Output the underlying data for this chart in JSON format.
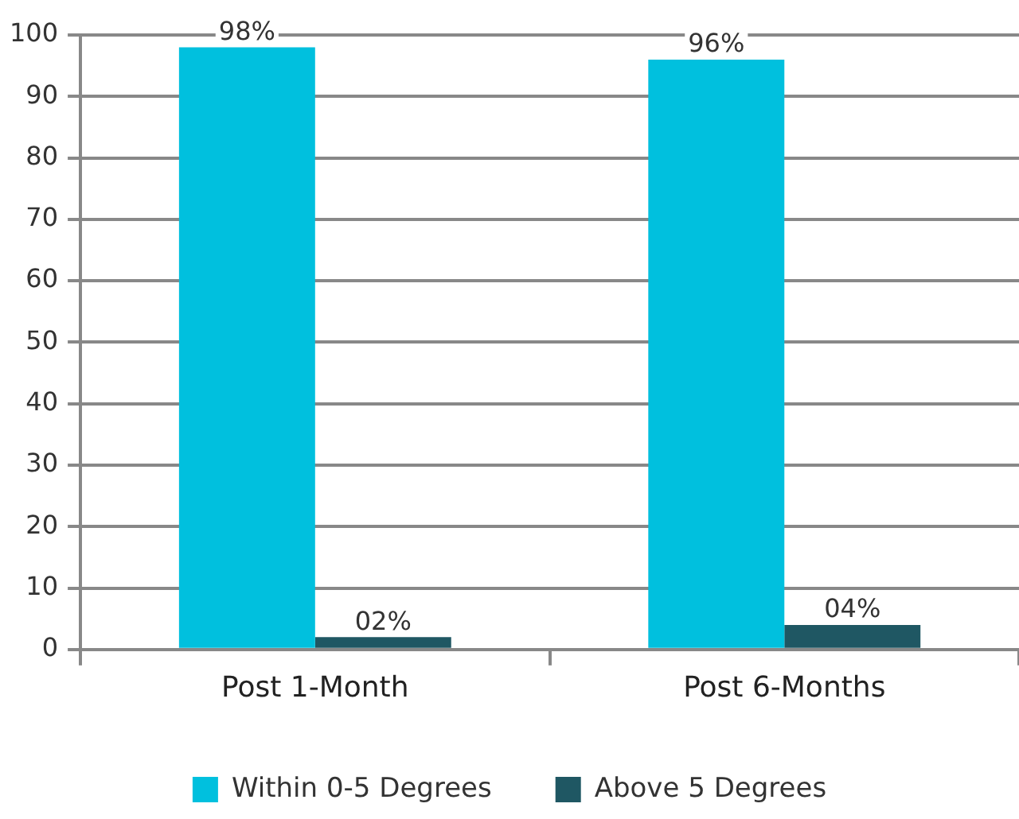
{
  "chart_data": {
    "type": "bar",
    "categories": [
      "Post 1-Month",
      "Post 6-Months"
    ],
    "series": [
      {
        "name": "Within 0-5 Degrees",
        "color": "#00c0de",
        "values": [
          98,
          96
        ],
        "value_labels": [
          "98%",
          "96%"
        ]
      },
      {
        "name": "Above 5 Degrees",
        "color": "#1f5763",
        "values": [
          2,
          4
        ],
        "value_labels": [
          "02%",
          "04%"
        ]
      }
    ],
    "ylim": [
      0,
      100
    ],
    "yticks": [
      0,
      10,
      20,
      30,
      40,
      50,
      60,
      70,
      80,
      90,
      100
    ],
    "grid": "y",
    "legend": "bottom"
  }
}
